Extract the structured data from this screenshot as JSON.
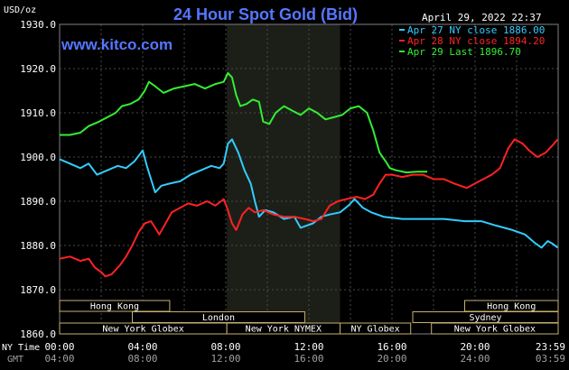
{
  "chart_data": {
    "type": "line",
    "title": "24 Hour Spot Gold (Bid)",
    "watermark": "www.kitco.com",
    "unit_label": "USD/oz",
    "timestamp": "April 29, 2022 22:37",
    "ylim": [
      1860,
      1930
    ],
    "yticks": [
      "1860.0",
      "1870.0",
      "1880.0",
      "1890.0",
      "1900.0",
      "1910.0",
      "1920.0",
      "1930.0"
    ],
    "xlim": [
      0,
      24
    ],
    "ny_time_label": "NY Time",
    "gmt_label": "GMT",
    "xticks_ny": [
      "00:00",
      "04:00",
      "08:00",
      "12:00",
      "16:00",
      "20:00",
      "23:59"
    ],
    "xticks_gmt": [
      "04:00",
      "08:00",
      "12:00",
      "16:00",
      "20:00",
      "24:00",
      "03:59"
    ],
    "nymex_shade": [
      8.05,
      13.5
    ],
    "legend_position": "top-right",
    "series": [
      {
        "name": "Apr 27 NY close 1886.00",
        "color": "#33CCFF",
        "points": [
          [
            0,
            1899.5
          ],
          [
            0.5,
            1898.5
          ],
          [
            1,
            1897.5
          ],
          [
            1.4,
            1898.5
          ],
          [
            1.8,
            1896
          ],
          [
            2.3,
            1897
          ],
          [
            2.8,
            1898
          ],
          [
            3.2,
            1897.5
          ],
          [
            3.6,
            1899
          ],
          [
            4.0,
            1901.5
          ],
          [
            4.2,
            1898
          ],
          [
            4.4,
            1895
          ],
          [
            4.6,
            1892
          ],
          [
            4.9,
            1893.5
          ],
          [
            5.3,
            1894
          ],
          [
            5.8,
            1894.5
          ],
          [
            6.3,
            1896
          ],
          [
            6.8,
            1897
          ],
          [
            7.3,
            1898
          ],
          [
            7.7,
            1897.5
          ],
          [
            7.9,
            1898.5
          ],
          [
            8.1,
            1903
          ],
          [
            8.3,
            1904
          ],
          [
            8.6,
            1901
          ],
          [
            8.9,
            1897
          ],
          [
            9.2,
            1894
          ],
          [
            9.4,
            1890
          ],
          [
            9.6,
            1886.5
          ],
          [
            9.9,
            1888
          ],
          [
            10.3,
            1887.5
          ],
          [
            10.8,
            1886
          ],
          [
            11.3,
            1886.5
          ],
          [
            11.6,
            1884
          ],
          [
            11.9,
            1884.5
          ],
          [
            12.2,
            1885
          ],
          [
            12.6,
            1886.5
          ],
          [
            13.0,
            1887
          ],
          [
            13.5,
            1887.5
          ],
          [
            13.9,
            1889
          ],
          [
            14.2,
            1890.5
          ],
          [
            14.6,
            1888.5
          ],
          [
            15.0,
            1887.5
          ],
          [
            15.6,
            1886.5
          ],
          [
            16.5,
            1886
          ],
          [
            17.5,
            1886
          ],
          [
            18.5,
            1886
          ],
          [
            19.5,
            1885.5
          ],
          [
            20.3,
            1885.5
          ],
          [
            21.0,
            1884.5
          ],
          [
            21.8,
            1883.5
          ],
          [
            22.4,
            1882.5
          ],
          [
            22.9,
            1880.5
          ],
          [
            23.2,
            1879.5
          ],
          [
            23.5,
            1881
          ],
          [
            23.7,
            1880.5
          ],
          [
            23.98,
            1879.5
          ]
        ]
      },
      {
        "name": "Apr 28 NY close 1894.20",
        "color": "#FF2222",
        "points": [
          [
            0,
            1877
          ],
          [
            0.5,
            1877.5
          ],
          [
            1,
            1876.5
          ],
          [
            1.4,
            1877
          ],
          [
            1.7,
            1875
          ],
          [
            2,
            1874
          ],
          [
            2.2,
            1873
          ],
          [
            2.5,
            1873.5
          ],
          [
            2.9,
            1875.5
          ],
          [
            3.2,
            1877.5
          ],
          [
            3.5,
            1880
          ],
          [
            3.8,
            1883
          ],
          [
            4.1,
            1885
          ],
          [
            4.4,
            1885.5
          ],
          [
            4.6,
            1884
          ],
          [
            4.8,
            1882.5
          ],
          [
            5.1,
            1885
          ],
          [
            5.4,
            1887.5
          ],
          [
            5.8,
            1888.5
          ],
          [
            6.2,
            1889.5
          ],
          [
            6.6,
            1889
          ],
          [
            7.1,
            1890
          ],
          [
            7.5,
            1889
          ],
          [
            7.9,
            1890.5
          ],
          [
            8.1,
            1888
          ],
          [
            8.3,
            1885
          ],
          [
            8.5,
            1883.5
          ],
          [
            8.8,
            1887
          ],
          [
            9.1,
            1888.5
          ],
          [
            9.4,
            1887.5
          ],
          [
            9.8,
            1888
          ],
          [
            10.3,
            1887
          ],
          [
            10.8,
            1886.5
          ],
          [
            11.3,
            1886.5
          ],
          [
            11.8,
            1886
          ],
          [
            12.2,
            1885.5
          ],
          [
            12.6,
            1886
          ],
          [
            13.0,
            1889
          ],
          [
            13.4,
            1890
          ],
          [
            13.8,
            1890.5
          ],
          [
            14.3,
            1891
          ],
          [
            14.7,
            1890.5
          ],
          [
            15.1,
            1891.5
          ],
          [
            15.4,
            1894
          ],
          [
            15.7,
            1896
          ],
          [
            16.0,
            1896
          ],
          [
            16.5,
            1895.5
          ],
          [
            17.0,
            1896
          ],
          [
            17.5,
            1896
          ],
          [
            18.0,
            1895
          ],
          [
            18.5,
            1895
          ],
          [
            19.0,
            1894
          ],
          [
            19.6,
            1893
          ],
          [
            20.2,
            1894.5
          ],
          [
            20.8,
            1896
          ],
          [
            21.2,
            1897.5
          ],
          [
            21.6,
            1902
          ],
          [
            21.9,
            1904
          ],
          [
            22.3,
            1903
          ],
          [
            22.6,
            1901.5
          ],
          [
            23.0,
            1900
          ],
          [
            23.4,
            1901
          ],
          [
            23.7,
            1902.5
          ],
          [
            23.98,
            1904
          ]
        ]
      },
      {
        "name": "Apr 29 Last 1896.70",
        "color": "#33EE33",
        "points": [
          [
            0,
            1905
          ],
          [
            0.5,
            1905
          ],
          [
            1,
            1905.5
          ],
          [
            1.4,
            1907
          ],
          [
            1.9,
            1908
          ],
          [
            2.3,
            1909
          ],
          [
            2.7,
            1910
          ],
          [
            3.0,
            1911.5
          ],
          [
            3.4,
            1912
          ],
          [
            3.8,
            1913
          ],
          [
            4.1,
            1915
          ],
          [
            4.3,
            1917
          ],
          [
            4.6,
            1916
          ],
          [
            5.0,
            1914.5
          ],
          [
            5.5,
            1915.5
          ],
          [
            6.0,
            1916
          ],
          [
            6.5,
            1916.5
          ],
          [
            7.0,
            1915.5
          ],
          [
            7.5,
            1916.5
          ],
          [
            7.9,
            1917
          ],
          [
            8.1,
            1919
          ],
          [
            8.3,
            1918
          ],
          [
            8.5,
            1914
          ],
          [
            8.7,
            1911.5
          ],
          [
            9.0,
            1912
          ],
          [
            9.3,
            1913
          ],
          [
            9.6,
            1912.5
          ],
          [
            9.8,
            1908
          ],
          [
            10.1,
            1907.5
          ],
          [
            10.4,
            1910
          ],
          [
            10.8,
            1911.5
          ],
          [
            11.2,
            1910.5
          ],
          [
            11.6,
            1909.5
          ],
          [
            12.0,
            1911
          ],
          [
            12.4,
            1910
          ],
          [
            12.8,
            1908.5
          ],
          [
            13.2,
            1909
          ],
          [
            13.6,
            1909.5
          ],
          [
            14.0,
            1911
          ],
          [
            14.4,
            1911.5
          ],
          [
            14.8,
            1910
          ],
          [
            15.1,
            1906
          ],
          [
            15.4,
            1901
          ],
          [
            15.7,
            1899
          ],
          [
            15.9,
            1897.5
          ],
          [
            16.2,
            1897
          ],
          [
            16.7,
            1896.5
          ],
          [
            17.2,
            1896.7
          ],
          [
            17.7,
            1896.7
          ]
        ]
      }
    ],
    "sessions": [
      {
        "label": "Hong Kong",
        "start": 0,
        "end": 5.3
      },
      {
        "label": "Hong Kong",
        "start": 19.5,
        "end": 24
      },
      {
        "label": "London",
        "start": 3.5,
        "end": 11.8
      },
      {
        "label": "Sydney",
        "start": 17.0,
        "end": 24
      },
      {
        "label": "New York Globex",
        "start": 0,
        "end": 8.05
      },
      {
        "label": "New York NYMEX",
        "start": 8.05,
        "end": 13.5
      },
      {
        "label": "NY Globex",
        "start": 13.5,
        "end": 16.9
      },
      {
        "label": "New York Globex",
        "start": 17.9,
        "end": 24
      }
    ]
  }
}
